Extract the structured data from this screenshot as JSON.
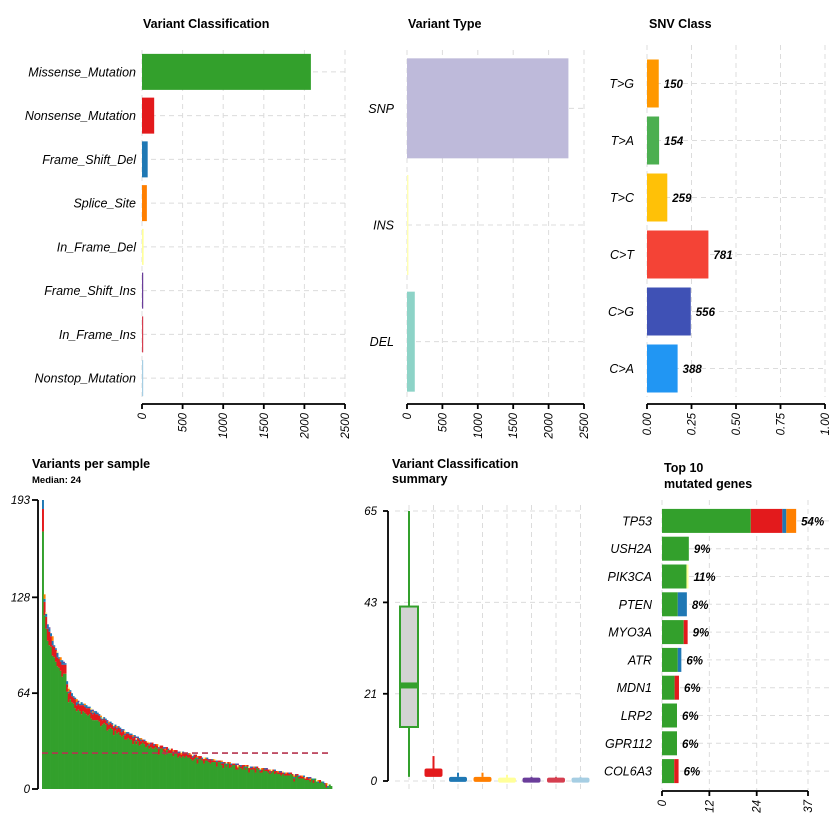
{
  "chart_data": [
    {
      "panel": "variant-classification",
      "type": "bar",
      "orientation": "horizontal",
      "title": "Variant Classification",
      "categories": [
        "Missense_Mutation",
        "Nonsense_Mutation",
        "Frame_Shift_Del",
        "Splice_Site",
        "In_Frame_Del",
        "Frame_Shift_Ins",
        "In_Frame_Ins",
        "Nonstop_Mutation"
      ],
      "values": [
        2080,
        150,
        70,
        60,
        20,
        15,
        8,
        3
      ],
      "colors": [
        "#33a02c",
        "#e31a1c",
        "#1f78b4",
        "#ff7f00",
        "#ffff99",
        "#6a3d9a",
        "#d53e4f",
        "#a6cee3"
      ],
      "xlim": [
        0,
        2500
      ],
      "xticks": [
        "0",
        "500",
        "1000",
        "1500",
        "2000",
        "2500"
      ],
      "grid": true
    },
    {
      "panel": "variant-type",
      "type": "bar",
      "orientation": "horizontal",
      "title": "Variant Type",
      "categories": [
        "SNP",
        "INS",
        "DEL"
      ],
      "values": [
        2280,
        20,
        110
      ],
      "colors": [
        "#bebada",
        "#ffffb3",
        "#8dd3c7"
      ],
      "xlim": [
        0,
        2500
      ],
      "xticks": [
        "0",
        "500",
        "1000",
        "1500",
        "2000",
        "2500"
      ],
      "grid": true
    },
    {
      "panel": "snv-class",
      "type": "bar",
      "orientation": "horizontal",
      "title": "SNV Class",
      "categories": [
        "T>G",
        "T>A",
        "T>C",
        "C>T",
        "C>G",
        "C>A"
      ],
      "counts": [
        150,
        154,
        259,
        781,
        556,
        388
      ],
      "count_labels": [
        "150",
        "154",
        "259",
        "781",
        "556",
        "388"
      ],
      "fractions": [
        0.066,
        0.068,
        0.114,
        0.345,
        0.246,
        0.172
      ],
      "colors": [
        "#ff9800",
        "#4caf50",
        "#ffc107",
        "#f44336",
        "#3f51b5",
        "#2196f3"
      ],
      "xlim": [
        0,
        1
      ],
      "xticks": [
        "0.00",
        "0.25",
        "0.50",
        "0.75",
        "1.00"
      ],
      "grid": true
    },
    {
      "panel": "variants-per-sample",
      "type": "bar",
      "stacked": true,
      "title": "Variants per sample",
      "subtitle": "Median: 24",
      "ylim": [
        0,
        193
      ],
      "yticks": [
        "0",
        "64",
        "128",
        "193"
      ],
      "median": 24,
      "sample_totals": [
        193,
        130,
        118,
        110,
        108,
        104,
        102,
        96,
        94,
        92,
        88,
        88,
        86,
        85,
        84,
        72,
        68,
        66,
        64,
        62,
        61,
        60,
        59,
        58,
        58,
        57,
        57,
        56,
        55,
        55,
        54,
        53,
        52,
        52,
        51,
        50,
        49,
        48,
        48,
        47,
        46,
        45,
        45,
        44,
        43,
        43,
        42,
        42,
        41,
        40,
        40,
        39,
        38,
        38,
        37,
        37,
        36,
        36,
        35,
        35,
        34,
        34,
        33,
        33,
        32,
        32,
        31,
        31,
        31,
        30,
        30,
        30,
        29,
        29,
        29,
        28,
        28,
        28,
        27,
        27,
        27,
        26,
        26,
        26,
        25,
        25,
        25,
        25,
        24,
        24,
        24,
        24,
        23,
        23,
        23,
        23,
        22,
        22,
        22,
        21,
        21,
        21,
        21,
        20,
        20,
        20,
        20,
        20,
        19,
        19,
        19,
        19,
        18,
        18,
        18,
        18,
        18,
        17,
        17,
        17,
        17,
        17,
        16,
        16,
        16,
        16,
        16,
        16,
        15,
        15,
        15,
        15,
        15,
        15,
        14,
        14,
        14,
        14,
        14,
        14,
        13,
        13,
        13,
        13,
        13,
        12,
        12,
        12,
        12,
        12,
        11,
        11,
        11,
        11,
        11,
        10,
        10,
        10,
        10,
        9,
        9,
        9,
        9,
        8,
        8,
        8,
        8,
        7,
        7,
        7,
        6,
        6,
        6,
        5,
        5,
        4,
        4,
        3,
        3,
        2
      ],
      "class_order": [
        "Missense_Mutation",
        "Nonsense_Mutation",
        "Frame_Shift_Del",
        "Splice_Site",
        "In_Frame_Del",
        "Frame_Shift_Ins",
        "In_Frame_Ins",
        "Nonstop_Mutation"
      ],
      "class_colors": [
        "#33a02c",
        "#e31a1c",
        "#1f78b4",
        "#ff7f00",
        "#ffff99",
        "#6a3d9a",
        "#d53e4f",
        "#a6cee3"
      ],
      "grid": false
    },
    {
      "panel": "variant-classification-summary",
      "type": "boxplot",
      "title_lines": [
        "Variant Classification",
        "summary"
      ],
      "ylim": [
        0,
        65
      ],
      "yticks": [
        "0",
        "21",
        "43",
        "65"
      ],
      "boxes": [
        {
          "class": "Missense_Mutation",
          "min": 1,
          "q1": 13,
          "median": 23,
          "q3": 42,
          "max": 65,
          "color": "#33a02c"
        },
        {
          "class": "Nonsense_Mutation",
          "min": 0,
          "q1": 1,
          "median": 2,
          "q3": 3,
          "max": 6,
          "color": "#e31a1c"
        },
        {
          "class": "Frame_Shift_Del",
          "min": 0,
          "q1": 0,
          "median": 0.5,
          "q3": 1,
          "max": 2,
          "color": "#1f78b4"
        },
        {
          "class": "Splice_Site",
          "min": 0,
          "q1": 0,
          "median": 0.5,
          "q3": 1,
          "max": 2,
          "color": "#ff7f00"
        },
        {
          "class": "In_Frame_Del",
          "min": 0,
          "q1": 0,
          "median": 0.3,
          "q3": 0.8,
          "max": 1.5,
          "color": "#ffff99"
        },
        {
          "class": "Frame_Shift_Ins",
          "min": 0,
          "q1": 0,
          "median": 0.3,
          "q3": 0.8,
          "max": 1,
          "color": "#6a3d9a"
        },
        {
          "class": "In_Frame_Ins",
          "min": 0,
          "q1": 0,
          "median": 0.3,
          "q3": 0.8,
          "max": 1,
          "color": "#d53e4f"
        },
        {
          "class": "Nonstop_Mutation",
          "min": 0,
          "q1": 0,
          "median": 0.3,
          "q3": 0.8,
          "max": 1,
          "color": "#a6cee3"
        }
      ],
      "grid": true
    },
    {
      "panel": "top-10-mutated-genes",
      "type": "bar",
      "orientation": "horizontal",
      "stacked": true,
      "title_lines": [
        "Top 10",
        "mutated genes"
      ],
      "categories": [
        "TP53",
        "USH2A",
        "PIK3CA",
        "PTEN",
        "MYO3A",
        "ATR",
        "MDN1",
        "LRP2",
        "GPR112",
        "COL6A3"
      ],
      "percent_labels": [
        "54%",
        "9%",
        "11%",
        "8%",
        "9%",
        "6%",
        "6%",
        "6%",
        "6%",
        "6%"
      ],
      "segments": [
        [
          {
            "cls": "Missense_Mutation",
            "v": 22.5
          },
          {
            "cls": "Nonsense_Mutation",
            "v": 8
          },
          {
            "cls": "Frame_Shift_Del",
            "v": 1
          },
          {
            "cls": "Splice_Site",
            "v": 2.5
          }
        ],
        [
          {
            "cls": "Missense_Mutation",
            "v": 6.8
          }
        ],
        [
          {
            "cls": "Missense_Mutation",
            "v": 6.2
          },
          {
            "cls": "In_Frame_Del",
            "v": 0.5
          }
        ],
        [
          {
            "cls": "Missense_Mutation",
            "v": 4
          },
          {
            "cls": "Frame_Shift_Del",
            "v": 2.3
          }
        ],
        [
          {
            "cls": "Missense_Mutation",
            "v": 5.5
          },
          {
            "cls": "Nonsense_Mutation",
            "v": 1
          }
        ],
        [
          {
            "cls": "Missense_Mutation",
            "v": 4
          },
          {
            "cls": "Frame_Shift_Del",
            "v": 0.9
          }
        ],
        [
          {
            "cls": "Missense_Mutation",
            "v": 3.2
          },
          {
            "cls": "Nonsense_Mutation",
            "v": 1.1
          }
        ],
        [
          {
            "cls": "Missense_Mutation",
            "v": 3.8
          }
        ],
        [
          {
            "cls": "Missense_Mutation",
            "v": 3.8
          }
        ],
        [
          {
            "cls": "Missense_Mutation",
            "v": 3.1
          },
          {
            "cls": "Nonsense_Mutation",
            "v": 1.1
          }
        ]
      ],
      "xlim": [
        0,
        37
      ],
      "xticks": [
        "0",
        "12",
        "24",
        "37"
      ],
      "class_colors": {
        "Missense_Mutation": "#33a02c",
        "Nonsense_Mutation": "#e31a1c",
        "Frame_Shift_Del": "#1f78b4",
        "Splice_Site": "#ff7f00",
        "In_Frame_Del": "#ffff99"
      },
      "grid": true
    }
  ],
  "colors": {
    "median_line": "#b5344f",
    "box_fill": "#d3d3d3"
  }
}
